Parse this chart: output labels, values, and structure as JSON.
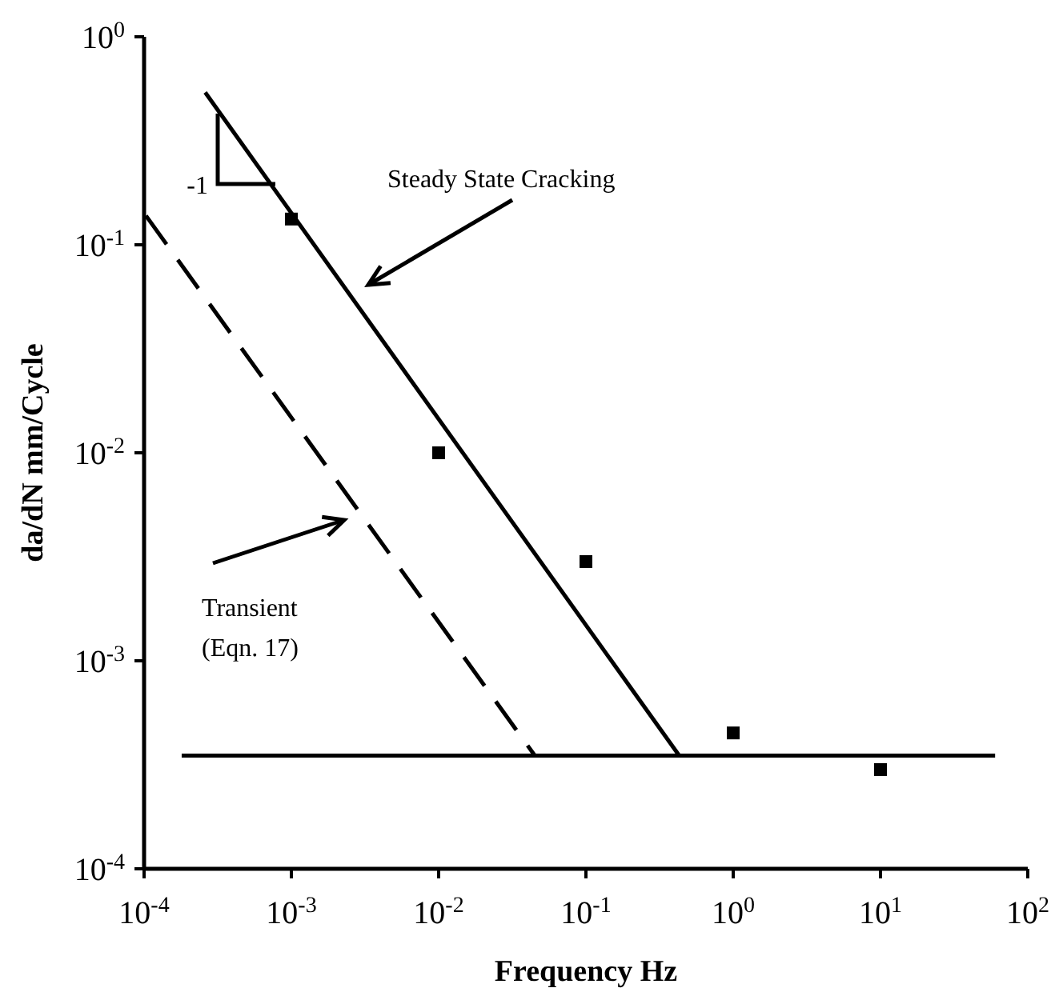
{
  "chart_data": {
    "type": "scatter",
    "xlabel": "Frequency   Hz",
    "ylabel": "da/dN   mm/Cycle",
    "log": "xy",
    "grid": false,
    "legend": false,
    "xlim": [
      0.0001,
      100
    ],
    "ylim": [
      0.0001,
      1
    ],
    "xticks": [
      {
        "value": 0.0001,
        "label": "10$^{-4}$"
      },
      {
        "value": 0.001,
        "label": "10$^{-3}$"
      },
      {
        "value": 0.01,
        "label": "10$^{-2}$"
      },
      {
        "value": 0.1,
        "label": "10$^{-1}$"
      },
      {
        "value": 1,
        "label": "10$^{0}$"
      },
      {
        "value": 10,
        "label": "10$^{1}$"
      },
      {
        "value": 100,
        "label": "10$^{2}$"
      }
    ],
    "yticks": [
      {
        "value": 0.0001,
        "label": "10$^{-4}$"
      },
      {
        "value": 0.001,
        "label": "10$^{-3}$"
      },
      {
        "value": 0.01,
        "label": "10$^{-2}$"
      },
      {
        "value": 0.1,
        "label": "10$^{-1}$"
      },
      {
        "value": 1,
        "label": "10$^{0}$"
      }
    ],
    "series": [
      {
        "color": "#000000",
        "marker": "square",
        "x": [
          0.001,
          0.01,
          0.1,
          1,
          10
        ],
        "values": [
          0.133,
          0.01,
          0.003,
          0.00045,
          0.0003
        ]
      },
      {
        "type": "line",
        "color": "#000000",
        "marker": "none",
        "line_style": "solid",
        "x": [
          0.00026,
          0.43
        ],
        "values": [
          0.54,
          0.00035
        ]
      },
      {
        "type": "line",
        "color": "#000000",
        "marker": "none",
        "line_style": "dashed",
        "x": [
          0.000103,
          0.045
        ],
        "values": [
          0.138,
          0.00035
        ]
      },
      {
        "type": "line",
        "color": "#000000",
        "marker": "none",
        "line_style": "solid",
        "x": [
          0.00018,
          60
        ],
        "values": [
          0.00035,
          0.00035
        ]
      }
    ],
    "annotations": [
      "Steady State Cracking",
      "Transient\n(Eqn. 17)",
      "-1"
    ]
  }
}
